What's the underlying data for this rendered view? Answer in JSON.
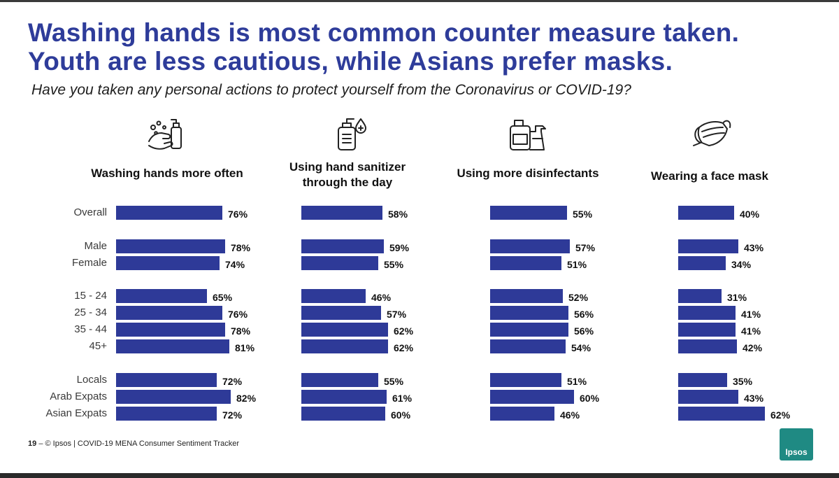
{
  "slide": {
    "title_line1": "Washing hands is most common counter measure taken.",
    "title_line2": "Youth are less cautious, while Asians prefer masks.",
    "question": "Have you taken any personal actions to protect yourself from the Coronavirus or COVID-19?",
    "footer_page": "19",
    "footer_text": "– © Ipsos | COVID-19 MENA Consumer Sentiment Tracker",
    "logo_text": "Ipsos",
    "bar_color": "#2e3a98",
    "logo_color": "#1f8a83"
  },
  "chart_data": {
    "type": "bar",
    "orientation": "horizontal",
    "unit": "%",
    "xlim": [
      0,
      100
    ],
    "categories": [
      "Overall",
      "Male",
      "Female",
      "15 - 24",
      "25 - 34",
      "35 - 44",
      "45+",
      "Locals",
      "Arab Expats",
      "Asian Expats"
    ],
    "groups": [
      [
        "Overall"
      ],
      [
        "Male",
        "Female"
      ],
      [
        "15 - 24",
        "25 - 34",
        "35 - 44",
        "45+"
      ],
      [
        "Locals",
        "Arab Expats",
        "Asian Expats"
      ]
    ],
    "series": [
      {
        "name": "Washing hands more often",
        "icon": "hand-washing-icon",
        "values": [
          76,
          78,
          74,
          65,
          76,
          78,
          81,
          72,
          82,
          72
        ]
      },
      {
        "name": "Using hand sanitizer through the day",
        "icon": "sanitizer-bottle-icon",
        "values": [
          58,
          59,
          55,
          46,
          57,
          62,
          62,
          55,
          61,
          60
        ]
      },
      {
        "name": "Using more disinfectants",
        "icon": "disinfectant-bottles-icon",
        "values": [
          55,
          57,
          51,
          52,
          56,
          56,
          54,
          51,
          60,
          46
        ]
      },
      {
        "name": "Wearing a face mask",
        "icon": "face-mask-icon",
        "values": [
          40,
          43,
          34,
          31,
          41,
          41,
          42,
          35,
          43,
          62
        ]
      }
    ]
  }
}
